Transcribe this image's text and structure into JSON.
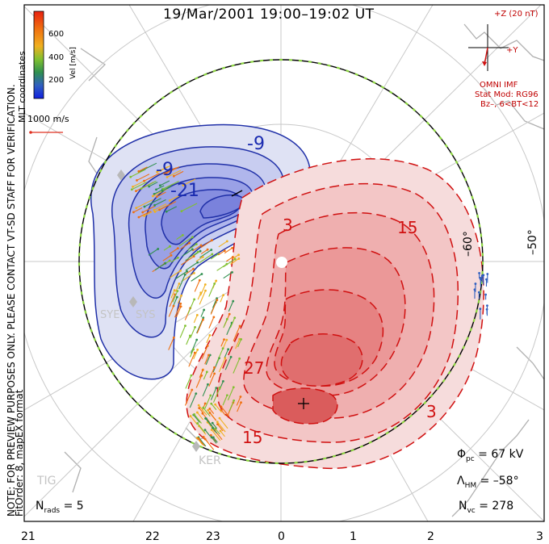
{
  "title": "19/Mar/2001  19:00–19:02  UT",
  "watermark": "NOTE: FOR PREVIEW PURPOSES ONLY. PLEASE CONTACT VT-SD STAFF FOR VERIFICATION.",
  "fitorder": "FitOrder: 8, mapEX format",
  "mlt_coordinates": "MLT coordinates",
  "colorbar": {
    "label": "Vel [m/s]",
    "ticks": [
      "600",
      "400",
      "200"
    ],
    "colors": [
      "#e82010",
      "#f07010",
      "#f0b020",
      "#80c030",
      "#309050",
      "#3060c0",
      "#1020e0"
    ]
  },
  "scale_vector": {
    "label": "1000 m/s"
  },
  "imf": {
    "bz_label": "+Z (20 nT)",
    "by_label": "+Y",
    "source": "OMNI IMF",
    "model": "Stat Mod: RG96",
    "condition": "Bz–, 6<BT<12"
  },
  "latitude_labels": [
    "–60°",
    "–50°"
  ],
  "mlt_ticks": [
    "21",
    "22",
    "23",
    "0",
    "1",
    "2",
    "3"
  ],
  "radar_labels": [
    "SYE",
    "SYS",
    "KER",
    "TIG"
  ],
  "stats": {
    "phi_pc": {
      "symbol": "Φ",
      "sub": "pc",
      "value": "= 67 kV"
    },
    "lambda_hm": {
      "symbol": "Λ",
      "sub": "HM",
      "value": "= –58°"
    },
    "n_vc": {
      "symbol": "N",
      "sub": "vc",
      "value": "= 278"
    },
    "n_rads": {
      "symbol": "N",
      "sub": "rads",
      "value": "= 5"
    }
  },
  "contour_labels": {
    "negative": [
      "-9",
      "-9",
      "-21"
    ],
    "positive": [
      "3",
      "15",
      "27",
      "15",
      "3"
    ]
  },
  "colors": {
    "negative": "#1a2bb0",
    "positive": "#d01010",
    "land": "#b0b0b0",
    "grid": "#c8c8c8"
  }
}
